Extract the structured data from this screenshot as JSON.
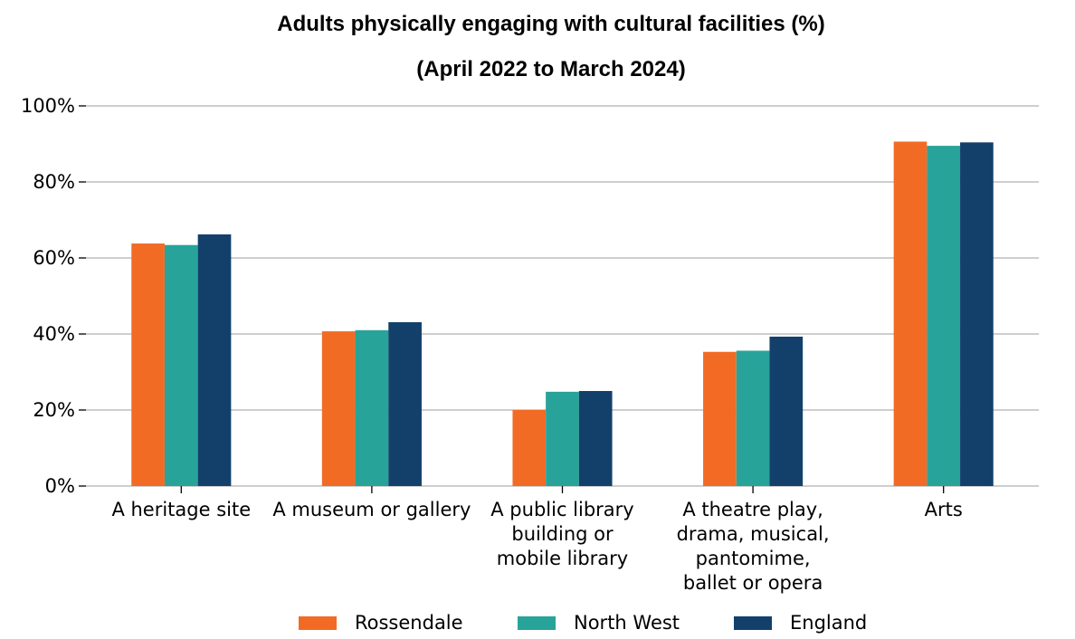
{
  "chart_data": {
    "type": "bar",
    "title": "Adults physically engaging with cultural facilities (%)",
    "subtitle": "(April 2022 to March 2024)",
    "xlabel": "",
    "ylabel": "",
    "categories": [
      [
        "A heritage site"
      ],
      [
        "A museum or gallery"
      ],
      [
        "A public library",
        "building or",
        "mobile library"
      ],
      [
        "A theatre play,",
        "drama, musical,",
        "pantomime,",
        "ballet or opera"
      ],
      [
        "Arts"
      ]
    ],
    "series": [
      {
        "name": "Rossendale",
        "color": "#F26B25",
        "values": [
          63.8,
          40.7,
          20.0,
          35.3,
          90.6
        ]
      },
      {
        "name": "North West",
        "color": "#27A39A",
        "values": [
          63.4,
          41.0,
          24.8,
          35.6,
          89.5
        ]
      },
      {
        "name": "England",
        "color": "#13406B",
        "values": [
          66.2,
          43.1,
          25.0,
          39.3,
          90.4
        ]
      }
    ],
    "ylim": [
      0,
      100
    ],
    "yticks": [
      0,
      20,
      40,
      60,
      80,
      100
    ],
    "ytick_labels": [
      "0%",
      "20%",
      "40%",
      "60%",
      "80%",
      "100%"
    ],
    "grid": true,
    "legend_position": "bottom"
  }
}
